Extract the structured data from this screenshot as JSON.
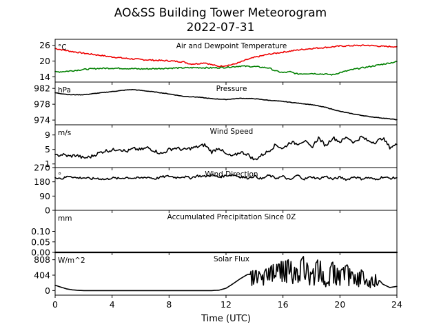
{
  "chart_data": {
    "type": "line",
    "title": "AO&SS Building Tower Meteorogram",
    "subtitle": "2022-07-31",
    "xlabel": "Time (UTC)",
    "xlim": [
      0,
      24
    ],
    "xticks": [
      "0",
      "4",
      "8",
      "12",
      "16",
      "20",
      "24"
    ],
    "panels": [
      {
        "title": "Air and Dewpoint Temperature",
        "unit": "°C",
        "ylim": [
          12,
          28.3
        ],
        "yticks": [
          "26",
          "20",
          "14"
        ],
        "series": [
          {
            "color": "#ee0000",
            "x": [
              0,
              1,
              2,
              3,
              4,
              5,
              6,
              7,
              8,
              9,
              9.5,
              10,
              10.5,
              11,
              11.5,
              12,
              12.5,
              13,
              13.5,
              14,
              15,
              16,
              17,
              18,
              19,
              20,
              21,
              22,
              23,
              24
            ],
            "y": [
              24.8,
              23.8,
              23.0,
              22.3,
              21.6,
              21.0,
              20.6,
              20.3,
              20.1,
              19.7,
              18.9,
              19.0,
              19.4,
              18.6,
              18.0,
              18.3,
              18.7,
              19.6,
              20.6,
              21.4,
              22.6,
              23.4,
              24.2,
              24.8,
              25.2,
              25.7,
              25.9,
              26.0,
              25.6,
              25.5
            ]
          },
          {
            "color": "#008000",
            "x": [
              0,
              1,
              2,
              3,
              4,
              5,
              6,
              7,
              8,
              9,
              10,
              11,
              12,
              13,
              14,
              15,
              15.5,
              16,
              16.5,
              17,
              18,
              19,
              19.5,
              20,
              21,
              22,
              23,
              24
            ],
            "y": [
              15.8,
              16.2,
              16.8,
              17.2,
              17.3,
              17.2,
              17.0,
              17.1,
              17.3,
              17.4,
              17.5,
              17.4,
              17.6,
              18.1,
              17.9,
              17.4,
              16.2,
              15.6,
              15.9,
              15.1,
              15.3,
              15.0,
              14.8,
              15.6,
              16.9,
              17.8,
              18.8,
              19.8
            ]
          }
        ]
      },
      {
        "title": "Pressure",
        "unit": "hPa",
        "ylim": [
          972.8,
          983.6
        ],
        "yticks": [
          "982",
          "978",
          "974"
        ],
        "series": [
          {
            "color": "#000000",
            "x": [
              0,
              1,
              2,
              3,
              4,
              5,
              5.5,
              6,
              7,
              8,
              9,
              10,
              11,
              12,
              13,
              14,
              15,
              16,
              17,
              18,
              19,
              20,
              21,
              22,
              23,
              24
            ],
            "y": [
              980.9,
              980.4,
              980.4,
              980.8,
              981.2,
              981.6,
              981.7,
              981.5,
              981.1,
              980.6,
              980.0,
              979.8,
              979.4,
              979.2,
              979.5,
              979.4,
              979.0,
              978.7,
              978.3,
              977.9,
              977.2,
              976.2,
              975.5,
              974.9,
              974.5,
              974.1
            ]
          }
        ]
      },
      {
        "title": "Wind Speed",
        "unit": "m/s",
        "ylim": [
          0,
          11.8
        ],
        "yticks": [
          "9",
          "5",
          "1"
        ],
        "series": [
          {
            "color": "#000000",
            "x": [
              0,
              0.5,
              1,
              1.5,
              2,
              2.5,
              3,
              3.5,
              4,
              4.5,
              5,
              5.5,
              6,
              6.5,
              7,
              7.5,
              8,
              8.5,
              9,
              9.5,
              10,
              10.5,
              11,
              11.5,
              12,
              12.5,
              13,
              13.5,
              14,
              14.5,
              15,
              15.5,
              16,
              16.5,
              17,
              17.5,
              18,
              18.5,
              19,
              19.5,
              20,
              20.5,
              21,
              21.5,
              22,
              22.5,
              23,
              23.5,
              24
            ],
            "y": [
              3.2,
              3.6,
              3.1,
              3.4,
              2.6,
              3.0,
              3.9,
              4.6,
              4.8,
              5.2,
              4.4,
              5.2,
              4.9,
              5.5,
              4.6,
              3.8,
              5.0,
              5.4,
              4.9,
              5.3,
              5.7,
              6.3,
              4.3,
              5.5,
              3.6,
              3.1,
              4.3,
              3.7,
              2.1,
              3.4,
              4.6,
              6.3,
              5.2,
              7.0,
              6.6,
              7.4,
              5.5,
              8.2,
              6.0,
              8.3,
              7.1,
              8.4,
              6.9,
              8.5,
              7.3,
              7.0,
              8.2,
              5.6,
              6.3
            ]
          }
        ]
      },
      {
        "title": "Wind Direction",
        "unit": "°",
        "ylim": [
          0,
          270
        ],
        "yticks": [
          "270",
          "180",
          "90",
          "0"
        ],
        "series": [
          {
            "color": "#000000",
            "x": [
              0,
              0.5,
              1,
              1.5,
              2,
              2.5,
              3,
              3.5,
              4,
              4.5,
              5,
              5.5,
              6,
              6.5,
              7,
              7.5,
              8,
              8.5,
              9,
              9.5,
              10,
              10.5,
              11,
              11.5,
              12,
              12.5,
              13,
              13.5,
              14,
              14.5,
              15,
              15.5,
              16,
              16.5,
              17,
              17.5,
              18,
              18.5,
              19,
              19.5,
              20,
              20.5,
              21,
              21.5,
              22,
              22.5,
              23,
              23.5,
              24
            ],
            "y": [
              210,
              200,
              218,
              204,
              206,
              199,
              202,
              195,
              205,
              200,
              208,
              203,
              204,
              210,
              199,
              211,
              216,
              207,
              213,
              205,
              218,
              214,
              222,
              210,
              220,
              225,
              211,
              204,
              216,
              198,
              221,
              203,
              214,
              190,
              222,
              197,
              212,
              199,
              215,
              196,
              209,
              194,
              213,
              199,
              207,
              193,
              211,
              202,
              206
            ]
          }
        ]
      },
      {
        "title": "Accumulated Precipitation Since 0Z",
        "unit": "mm",
        "ylim": [
          0,
          0.2
        ],
        "yticks": [
          "0.10",
          "0.05",
          "0.00"
        ],
        "series": [
          {
            "color": "#000000",
            "x": [
              0,
              24
            ],
            "y": [
              0,
              0
            ]
          }
        ]
      },
      {
        "title": "Solar Flux",
        "unit": "W/m^2",
        "ylim": [
          -120,
          1000
        ],
        "yticks": [
          "808",
          "404",
          "0"
        ],
        "series": [
          {
            "color": "#000000",
            "x": [
              0,
              0.4,
              0.8,
              1.2,
              1.6,
              2,
              3,
              4,
              5,
              6,
              7,
              8,
              9,
              10,
              11,
              11.5,
              12,
              12.5,
              13,
              13.5,
              14,
              14.5,
              15,
              15.5,
              16,
              16.5,
              17,
              17.5,
              18,
              18.5,
              19,
              19.5,
              20,
              20.5,
              21,
              21.5,
              22,
              22.5,
              23,
              23.5,
              24
            ],
            "y": [
              140,
              90,
              45,
              20,
              5,
              0,
              0,
              0,
              0,
              0,
              0,
              0,
              0,
              0,
              0,
              10,
              60,
              180,
              310,
              420,
              520,
              430,
              610,
              700,
              760,
              820,
              550,
              930,
              420,
              880,
              320,
              760,
              480,
              660,
              380,
              560,
              250,
              390,
              170,
              80,
              110
            ]
          }
        ]
      }
    ]
  }
}
